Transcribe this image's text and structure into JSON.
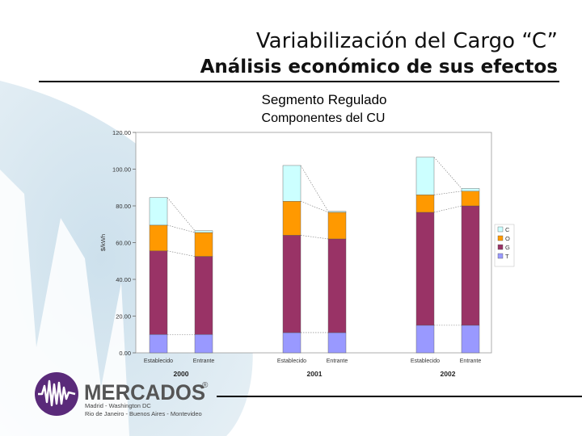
{
  "header": {
    "title": "Variabilización del Cargo “C”",
    "subtitle": "Análisis económico de sus efectos"
  },
  "chart_heading": {
    "segment": "Segmento Regulado",
    "components": "Componentes del CU"
  },
  "colors": {
    "T": "#9999ff",
    "G": "#993366",
    "O": "#ff9900",
    "C": "#ccffff"
  },
  "chart_data": {
    "type": "bar",
    "stacked": true,
    "ylabel": "$/kWh",
    "ylim": [
      0,
      120
    ],
    "yticks": [
      "0.00",
      "20.00",
      "40.00",
      "60.00",
      "80.00",
      "100.00",
      "120.00"
    ],
    "grid": false,
    "legend_position": "right",
    "groups": [
      {
        "label": "2000",
        "bars": [
          {
            "label": "Establecido",
            "T": 10,
            "G": 45.5,
            "O": 14,
            "C": 15
          },
          {
            "label": "Entrante",
            "T": 10,
            "G": 42.5,
            "O": 13,
            "C": 1
          }
        ]
      },
      {
        "label": "2001",
        "bars": [
          {
            "label": "Establecido",
            "T": 11,
            "G": 53,
            "O": 18.5,
            "C": 19.5
          },
          {
            "label": "Entrante",
            "T": 11,
            "G": 51,
            "O": 14.5,
            "C": 0.5
          }
        ]
      },
      {
        "label": "2002",
        "bars": [
          {
            "label": "Establecido",
            "T": 15,
            "G": 61.5,
            "O": 9.5,
            "C": 20.5
          },
          {
            "label": "Entrante",
            "T": 15,
            "G": 65,
            "O": 8,
            "C": 1.5
          }
        ]
      }
    ],
    "series": [
      {
        "name": "C",
        "key": "C"
      },
      {
        "name": "O",
        "key": "O"
      },
      {
        "name": "G",
        "key": "G"
      },
      {
        "name": "T",
        "key": "T"
      }
    ]
  },
  "logo": {
    "name": "MERCADOS",
    "registered": "®",
    "line1": "Madrid - Washington DC",
    "line2": "Rio de Janeiro - Buenos Aires - Montevideo"
  }
}
